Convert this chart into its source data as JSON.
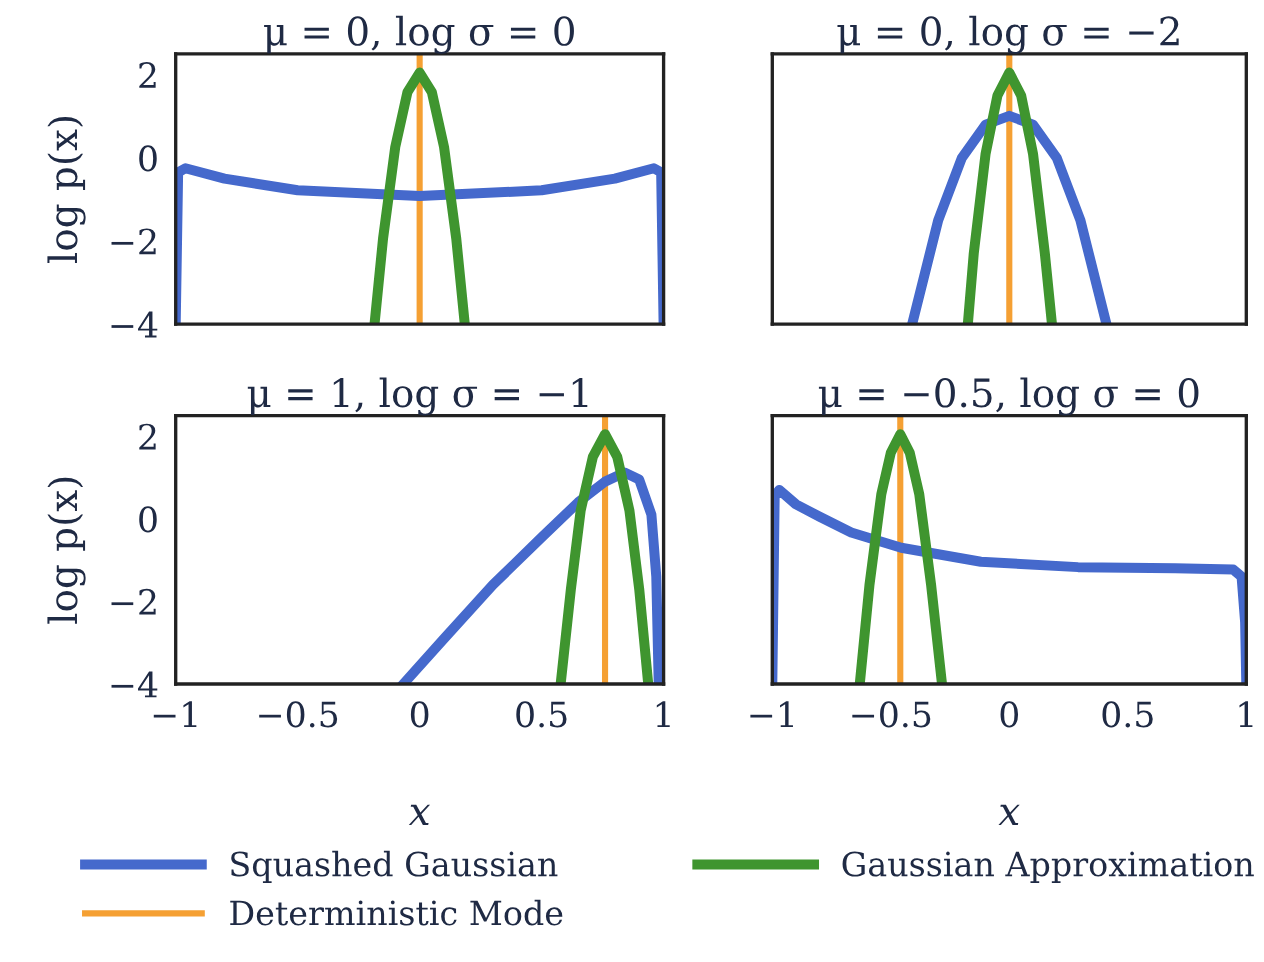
{
  "chart_data": [
    {
      "type": "line",
      "title": "μ = 0, log σ = 0",
      "ylabel": "log p(x)",
      "xlim": [
        -1,
        1
      ],
      "ylim": [
        -4,
        2.5
      ],
      "xticks": [
        -1,
        -0.5,
        0,
        0.5,
        1
      ],
      "yticks": [
        -4,
        -2,
        0,
        2
      ],
      "tick_labels": "y",
      "series": [
        {
          "color": "#4569cc",
          "x": [
            -1,
            -0.99,
            -0.96,
            -0.8,
            -0.5,
            0,
            0.5,
            0.8,
            0.96,
            0.99,
            1
          ],
          "values": [
            -4,
            -0.35,
            -0.25,
            -0.5,
            -0.78,
            -0.92,
            -0.78,
            -0.5,
            -0.25,
            -0.35,
            -4
          ]
        },
        {
          "color": "#3f952f",
          "x": [
            -0.185,
            -0.15,
            -0.1,
            -0.05,
            0,
            0.05,
            0.1,
            0.15,
            0.185
          ],
          "values": [
            -4,
            -1.94,
            0.26,
            1.58,
            2.05,
            1.58,
            0.26,
            -1.94,
            -4
          ]
        }
      ],
      "ref_lines": [
        {
          "axis": "x",
          "value": 0,
          "color": "#f5a033"
        }
      ]
    },
    {
      "type": "line",
      "title": "μ = 0, log σ = −2",
      "xlim": [
        -1,
        1
      ],
      "ylim": [
        -4,
        2.5
      ],
      "xticks": [
        -1,
        -0.5,
        0,
        0.5,
        1
      ],
      "yticks": [
        -4,
        -2,
        0,
        2
      ],
      "tick_labels": false,
      "series": [
        {
          "color": "#4569cc",
          "x": [
            -0.41,
            -0.3,
            -0.2,
            -0.1,
            0,
            0.1,
            0.2,
            0.3,
            0.41
          ],
          "values": [
            -4,
            -1.5,
            0,
            0.8,
            1.01,
            0.8,
            0,
            -1.5,
            -4
          ]
        },
        {
          "color": "#3f952f",
          "x": [
            -0.175,
            -0.15,
            -0.1,
            -0.05,
            0,
            0.05,
            0.1,
            0.15,
            0.18
          ],
          "values": [
            -4,
            -2.3,
            0.1,
            1.5,
            2.05,
            1.5,
            0.1,
            -2.3,
            -4
          ]
        }
      ],
      "ref_lines": [
        {
          "axis": "x",
          "value": 0,
          "color": "#f5a033"
        }
      ]
    },
    {
      "type": "line",
      "title": "μ = 1, log σ = −1",
      "xlabel": "x",
      "ylabel": "log p(x)",
      "xlim": [
        -1,
        1
      ],
      "ylim": [
        -4,
        2.5
      ],
      "xticks": [
        -1,
        -0.5,
        0,
        0.5,
        1
      ],
      "yticks": [
        -4,
        -2,
        0,
        2
      ],
      "series": [
        {
          "color": "#4569cc",
          "x": [
            -0.067,
            0.1,
            0.3,
            0.5,
            0.65,
            0.76,
            0.84,
            0.9,
            0.95,
            0.97,
            0.98
          ],
          "values": [
            -4,
            -2.9,
            -1.6,
            -0.45,
            0.4,
            0.9,
            1.12,
            0.95,
            0.1,
            -1.4,
            -4
          ]
        },
        {
          "color": "#3f952f",
          "x": [
            0.578,
            0.62,
            0.66,
            0.71,
            0.76,
            0.81,
            0.86,
            0.9,
            0.937
          ],
          "values": [
            -4,
            -1.7,
            0.2,
            1.5,
            2.05,
            1.5,
            0.2,
            -1.7,
            -4
          ]
        }
      ],
      "ref_lines": [
        {
          "axis": "x",
          "value": 0.76,
          "color": "#f5a033"
        }
      ]
    },
    {
      "type": "line",
      "title": "μ = −0.5, log σ = 0",
      "xlabel": "x",
      "xlim": [
        -1,
        1
      ],
      "ylim": [
        -4,
        2.5
      ],
      "xticks": [
        -1,
        -0.5,
        0,
        0.5,
        1
      ],
      "yticks": [
        -4,
        -2,
        0,
        2
      ],
      "tick_labels": "x",
      "legend": "bottom",
      "series": [
        {
          "name": "Squashed Gaussian",
          "color": "#4569cc",
          "x": [
            -1,
            -0.99,
            -0.97,
            -0.9,
            -0.8,
            -0.667,
            -0.456,
            -0.12,
            0.29,
            0.7,
            0.945,
            0.98,
            0.995,
            1
          ],
          "values": [
            -4,
            0.55,
            0.7,
            0.35,
            0.05,
            -0.33,
            -0.7,
            -1.04,
            -1.17,
            -1.2,
            -1.23,
            -1.4,
            -2.5,
            -4
          ]
        },
        {
          "name": "Gaussian Approximation",
          "color": "#3f952f",
          "x": [
            -0.631,
            -0.59,
            -0.54,
            -0.5,
            -0.46,
            -0.42,
            -0.38,
            -0.33,
            -0.284
          ],
          "values": [
            -4,
            -1.6,
            0.6,
            1.6,
            2.05,
            1.6,
            0.6,
            -1.6,
            -4
          ]
        }
      ],
      "ref_lines": [
        {
          "axis": "x",
          "value": -0.46,
          "label": "Deterministic Mode",
          "color": "#f5a033"
        }
      ]
    }
  ]
}
